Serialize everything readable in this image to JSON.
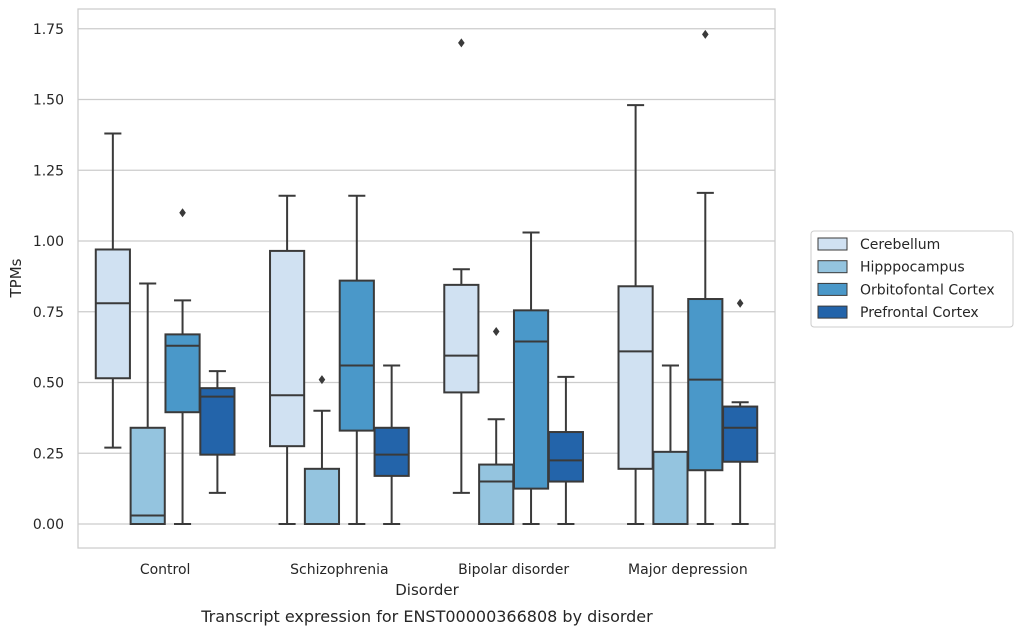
{
  "chart_data": {
    "type": "box",
    "caption": "Transcript expression for ENST00000366808 by disorder",
    "xlabel": "Disorder",
    "ylabel": "TPMs",
    "ylim": [
      -0.085,
      1.82
    ],
    "yticks": [
      0.0,
      0.25,
      0.5,
      0.75,
      1.0,
      1.25,
      1.5,
      1.75
    ],
    "ytick_labels": [
      "0.00",
      "0.25",
      "0.50",
      "0.75",
      "1.00",
      "1.25",
      "1.50",
      "1.75"
    ],
    "grid": "horizontal",
    "legend_position": "right",
    "categories": [
      "Control",
      "Schizophrenia",
      "Bipolar disorder",
      "Major depression"
    ],
    "series": [
      {
        "name": "Cerebellum",
        "color": "#d0e1f2",
        "boxes": [
          {
            "whisker_low": 0.27,
            "q1": 0.515,
            "median": 0.78,
            "q3": 0.97,
            "whisker_high": 1.38,
            "outliers": []
          },
          {
            "whisker_low": 0.0,
            "q1": 0.275,
            "median": 0.455,
            "q3": 0.965,
            "whisker_high": 1.16,
            "outliers": []
          },
          {
            "whisker_low": 0.11,
            "q1": 0.465,
            "median": 0.595,
            "q3": 0.845,
            "whisker_high": 0.9,
            "outliers": [
              1.7
            ]
          },
          {
            "whisker_low": 0.0,
            "q1": 0.195,
            "median": 0.61,
            "q3": 0.84,
            "whisker_high": 1.48,
            "outliers": []
          }
        ]
      },
      {
        "name": "Hipppocampus",
        "color": "#94c4df",
        "boxes": [
          {
            "whisker_low": 0.0,
            "q1": 0.0,
            "median": 0.03,
            "q3": 0.34,
            "whisker_high": 0.85,
            "outliers": []
          },
          {
            "whisker_low": 0.0,
            "q1": 0.0,
            "median": 0.0,
            "q3": 0.195,
            "whisker_high": 0.4,
            "outliers": [
              0.51
            ]
          },
          {
            "whisker_low": 0.0,
            "q1": 0.0,
            "median": 0.15,
            "q3": 0.21,
            "whisker_high": 0.37,
            "outliers": [
              0.68
            ]
          },
          {
            "whisker_low": 0.0,
            "q1": 0.0,
            "median": 0.0,
            "q3": 0.255,
            "whisker_high": 0.56,
            "outliers": []
          }
        ]
      },
      {
        "name": "Orbitofontal Cortex",
        "color": "#4a98c9",
        "boxes": [
          {
            "whisker_low": 0.0,
            "q1": 0.395,
            "median": 0.63,
            "q3": 0.67,
            "whisker_high": 0.79,
            "outliers": [
              1.1
            ]
          },
          {
            "whisker_low": 0.0,
            "q1": 0.33,
            "median": 0.56,
            "q3": 0.86,
            "whisker_high": 1.16,
            "outliers": []
          },
          {
            "whisker_low": 0.0,
            "q1": 0.125,
            "median": 0.645,
            "q3": 0.755,
            "whisker_high": 1.03,
            "outliers": []
          },
          {
            "whisker_low": 0.0,
            "q1": 0.19,
            "median": 0.51,
            "q3": 0.795,
            "whisker_high": 1.17,
            "outliers": [
              1.73
            ]
          }
        ]
      },
      {
        "name": "Prefrontal Cortex",
        "color": "#2364aa",
        "boxes": [
          {
            "whisker_low": 0.11,
            "q1": 0.245,
            "median": 0.45,
            "q3": 0.48,
            "whisker_high": 0.54,
            "outliers": []
          },
          {
            "whisker_low": 0.0,
            "q1": 0.17,
            "median": 0.245,
            "q3": 0.34,
            "whisker_high": 0.56,
            "outliers": []
          },
          {
            "whisker_low": 0.0,
            "q1": 0.15,
            "median": 0.225,
            "q3": 0.325,
            "whisker_high": 0.52,
            "outliers": []
          },
          {
            "whisker_low": 0.0,
            "q1": 0.22,
            "median": 0.34,
            "q3": 0.415,
            "whisker_high": 0.43,
            "outliers": [
              0.78
            ]
          }
        ]
      }
    ]
  }
}
